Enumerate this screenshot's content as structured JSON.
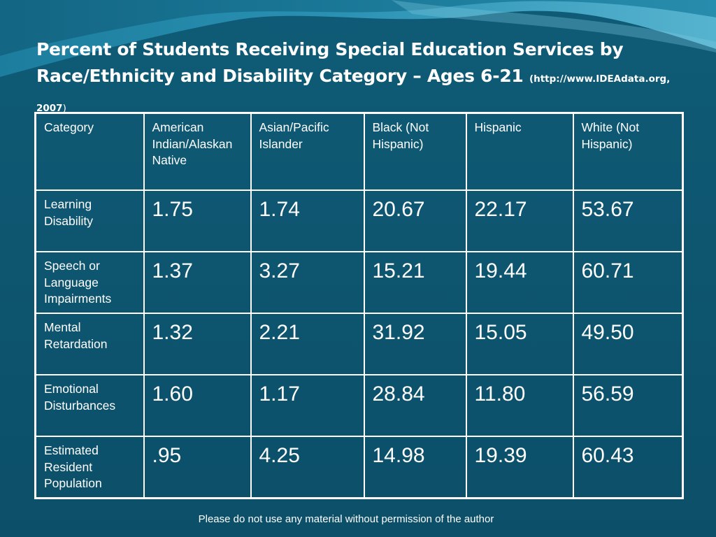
{
  "slide": {
    "title_main": "Percent of Students Receiving Special Education Services by Race/Ethnicity and Disability Category – Ages 6-21",
    "title_source_open": "(",
    "title_source": "http://www.IDEAdata.org, 2007",
    "title_source_close": ")",
    "footer": "Please do not use any material without permission of the author",
    "colors": {
      "background": "#0f5872",
      "wave_light": "#3fa7c7",
      "text": "#ffffff"
    }
  },
  "table": {
    "headers": [
      "Category",
      "American Indian/Alaskan Native",
      "Asian/Pacific Islander",
      "Black (Not Hispanic)",
      "Hispanic",
      "White (Not Hispanic)"
    ],
    "rows": [
      {
        "category": "Learning Disability",
        "values": [
          "1.75",
          "1.74",
          "20.67",
          "22.17",
          "53.67"
        ]
      },
      {
        "category": "Speech or Language Impairments",
        "values": [
          "1.37",
          "3.27",
          "15.21",
          "19.44",
          "60.71"
        ]
      },
      {
        "category": "Mental Retardation",
        "values": [
          "1.32",
          "2.21",
          "31.92",
          "15.05",
          "49.50"
        ]
      },
      {
        "category": "Emotional Disturbances",
        "values": [
          "1.60",
          "1.17",
          "28.84",
          "11.80",
          "56.59"
        ]
      },
      {
        "category": "Estimated Resident Population",
        "values": [
          ".95",
          "4.25",
          "14.98",
          "19.39",
          "60.43"
        ]
      }
    ]
  }
}
